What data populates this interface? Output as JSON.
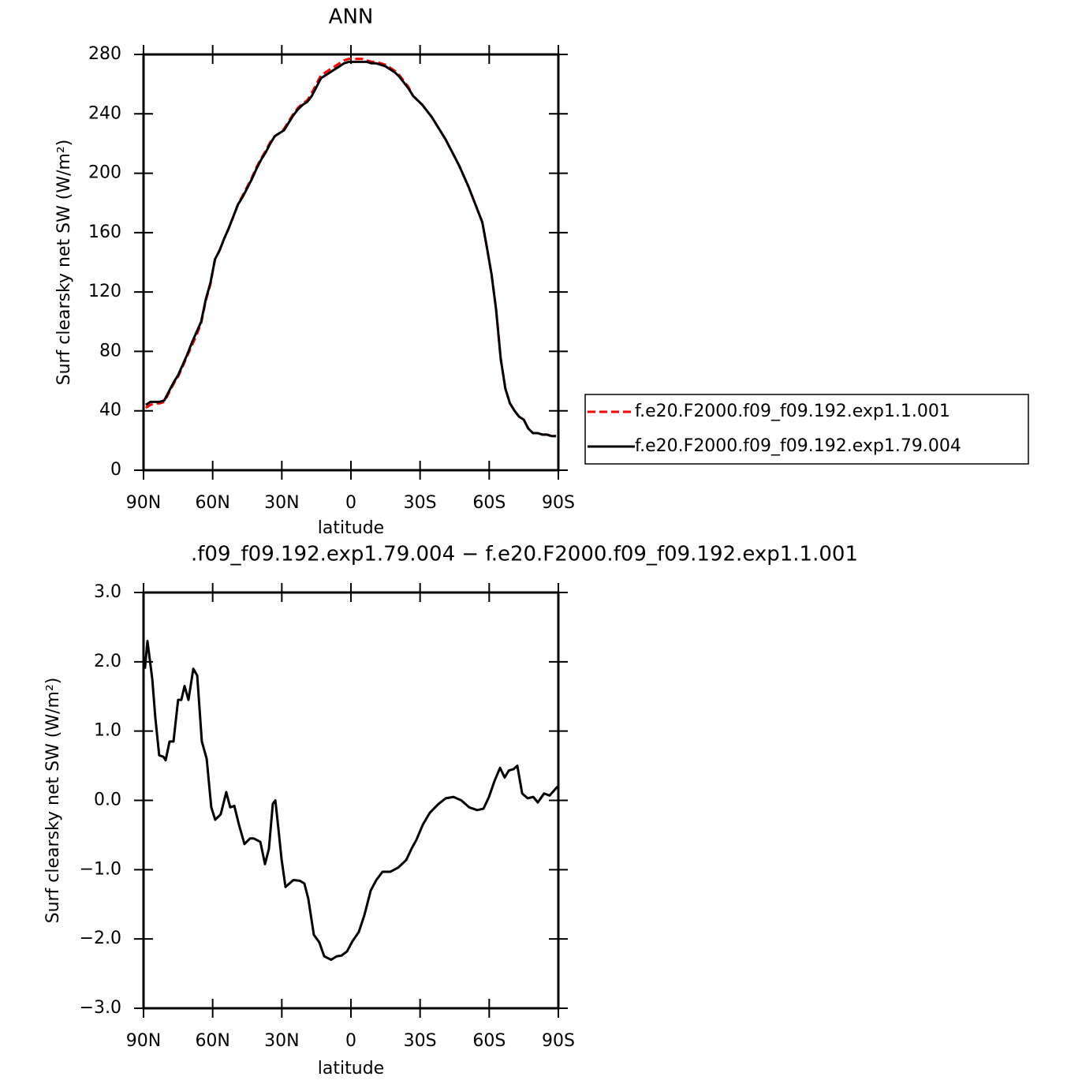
{
  "chart_data": [
    {
      "type": "line",
      "title": "ANN",
      "x_label": "latitude",
      "y_label": "Surf clearsky net SW (W/m²)",
      "legend": "right",
      "xlim": [
        90,
        -90
      ],
      "xticks": [
        {
          "value": 90,
          "label": "90N"
        },
        {
          "value": 60,
          "label": "60N"
        },
        {
          "value": 30,
          "label": "30N"
        },
        0,
        {
          "value": -30,
          "label": "30S"
        },
        {
          "value": -60,
          "label": "60S"
        },
        {
          "value": -90,
          "label": "90S"
        }
      ],
      "ylim": [
        0,
        280
      ],
      "yticks": [
        0,
        40,
        80,
        120,
        160,
        200,
        240,
        280
      ],
      "x": [
        89,
        87,
        85,
        83,
        81,
        79,
        77,
        75,
        73,
        71,
        69,
        67,
        65,
        63,
        61,
        59,
        57,
        55,
        53,
        51,
        49,
        47,
        45,
        43,
        41,
        39,
        37,
        35,
        33,
        31,
        29,
        27,
        25,
        23,
        21,
        19,
        17,
        15,
        13,
        11,
        9,
        7,
        5,
        3,
        1,
        -1,
        -3,
        -5,
        -7,
        -9,
        -11,
        -13,
        -15,
        -17,
        -19,
        -21,
        -23,
        -25,
        -27,
        -29,
        -31,
        -33,
        -35,
        -37,
        -39,
        -41,
        -43,
        -45,
        -47,
        -49,
        -51,
        -53,
        -55,
        -57,
        -59,
        -61,
        -63,
        -65,
        -67,
        -69,
        -71,
        -73,
        -75,
        -77,
        -79,
        -81,
        -83,
        -85,
        -87,
        -89
      ],
      "series": [
        {
          "name": "f.e20.F2000.f09_f09.192.exp1.1.001",
          "color": "#ff0000",
          "style": "dashed",
          "values": [
            42,
            44,
            45,
            45,
            46,
            52,
            58,
            63,
            70,
            77,
            84,
            91,
            99,
            114,
            125,
            142,
            148,
            156,
            163,
            171,
            179,
            185,
            191,
            197,
            204,
            210,
            215,
            221,
            225,
            227,
            230,
            235,
            240,
            244,
            247,
            249,
            254,
            260,
            266,
            268,
            270,
            272,
            274,
            276,
            277,
            277,
            277,
            277,
            276,
            275,
            275,
            274,
            273,
            271,
            269,
            266,
            262,
            258,
            252,
            249,
            246,
            242,
            238,
            233,
            228,
            223,
            217,
            211,
            205,
            198,
            191,
            183,
            175,
            167,
            150,
            132,
            108,
            75,
            55,
            45,
            40,
            36,
            34,
            28,
            25,
            25,
            24,
            24,
            23,
            23
          ]
        },
        {
          "name": "f.e20.F2000.f09_f09.192.exp1.79.004",
          "color": "#000000",
          "style": "solid",
          "values": [
            44,
            46,
            46,
            46,
            47,
            53,
            59,
            64,
            71,
            78,
            86,
            93,
            100,
            115,
            126,
            142,
            148,
            156,
            163,
            171,
            179,
            184,
            190,
            196,
            203,
            209,
            214,
            220,
            225,
            227,
            229,
            234,
            239,
            243,
            246,
            248,
            252,
            258,
            264,
            266,
            268,
            270,
            272,
            274,
            275,
            275,
            275,
            275,
            275,
            274,
            274,
            273,
            272,
            270,
            268,
            265,
            261,
            257,
            252,
            249,
            246,
            242,
            238,
            233,
            228,
            223,
            217,
            211,
            205,
            198,
            191,
            183,
            175,
            167,
            150,
            132,
            108,
            75,
            55,
            45,
            40,
            36,
            34,
            28,
            25,
            25,
            24,
            24,
            23,
            23
          ]
        }
      ]
    },
    {
      "type": "line",
      "title": ".f09_f09.192.exp1.79.004 − f.e20.F2000.f09_f09.192.exp1.1.001",
      "x_label": "latitude",
      "y_label": "Surf clearsky net SW (W/m²)",
      "xlim": [
        90,
        -90
      ],
      "xticks": [
        {
          "value": 90,
          "label": "90N"
        },
        {
          "value": 60,
          "label": "60N"
        },
        {
          "value": 30,
          "label": "30N"
        },
        0,
        {
          "value": -30,
          "label": "30S"
        },
        {
          "value": -60,
          "label": "60S"
        },
        {
          "value": -90,
          "label": "90S"
        }
      ],
      "ylim": [
        -3,
        3
      ],
      "yticks": [
        {
          "value": -3,
          "label": "−3.0"
        },
        {
          "value": -2,
          "label": "−2.0"
        },
        {
          "value": -1,
          "label": "−1.0"
        },
        {
          "value": 0,
          "label": "0.0"
        },
        {
          "value": 1,
          "label": "1.0"
        },
        {
          "value": 2,
          "label": "2.0"
        },
        {
          "value": 3,
          "label": "3.0"
        }
      ],
      "x": [
        89.4,
        88.3,
        86.2,
        84.9,
        83.2,
        81.4,
        80.4,
        78.7,
        77,
        75,
        73.6,
        72.2,
        70.5,
        68.4,
        66.7,
        64.7,
        62.6,
        60.6,
        58.9,
        56.5,
        54.1,
        52.4,
        50.6,
        48.6,
        46.2,
        43.8,
        42.1,
        39.3,
        37.3,
        35.6,
        33.9,
        32.8,
        31.5,
        30.1,
        28.4,
        26.7,
        25,
        22.2,
        20.2,
        18.5,
        16.1,
        13.7,
        11.6,
        8.6,
        6.2,
        4.1,
        1.7,
        -0.7,
        -3.4,
        -5.8,
        -8.6,
        -11,
        -13.7,
        -17.1,
        -20.5,
        -24,
        -26.4,
        -28.4,
        -31.2,
        -34.2,
        -37.7,
        -41.1,
        -44.5,
        -47.9,
        -51.3,
        -54.8,
        -57.5,
        -59.9,
        -62.3,
        -64.7,
        -66.7,
        -68.5,
        -70.5,
        -72.2,
        -74.3,
        -76.7,
        -79.1,
        -81.1,
        -83.8,
        -86.2,
        -89.7
      ],
      "series": [
        {
          "color": "#000000",
          "style": "solid",
          "values": [
            1.9,
            2.3,
            1.75,
            1.2,
            0.65,
            0.63,
            0.58,
            0.85,
            0.85,
            1.45,
            1.45,
            1.65,
            1.45,
            1.9,
            1.8,
            0.85,
            0.6,
            -0.1,
            -0.28,
            -0.2,
            0.12,
            -0.1,
            -0.08,
            -0.35,
            -0.63,
            -0.55,
            -0.55,
            -0.6,
            -0.92,
            -0.7,
            -0.05,
            0,
            -0.4,
            -0.85,
            -1.25,
            -1.2,
            -1.15,
            -1.16,
            -1.2,
            -1.42,
            -1.94,
            -2.05,
            -2.25,
            -2.3,
            -2.25,
            -2.24,
            -2.18,
            -2.03,
            -1.9,
            -1.66,
            -1.3,
            -1.15,
            -1.03,
            -1.03,
            -0.97,
            -0.86,
            -0.69,
            -0.57,
            -0.35,
            -0.18,
            -0.06,
            0.03,
            0.05,
            0,
            -0.1,
            -0.14,
            -0.12,
            0.05,
            0.28,
            0.47,
            0.33,
            0.43,
            0.45,
            0.5,
            0.1,
            0.03,
            0.05,
            -0.03,
            0.1,
            0.07,
            0.2
          ]
        }
      ]
    }
  ]
}
